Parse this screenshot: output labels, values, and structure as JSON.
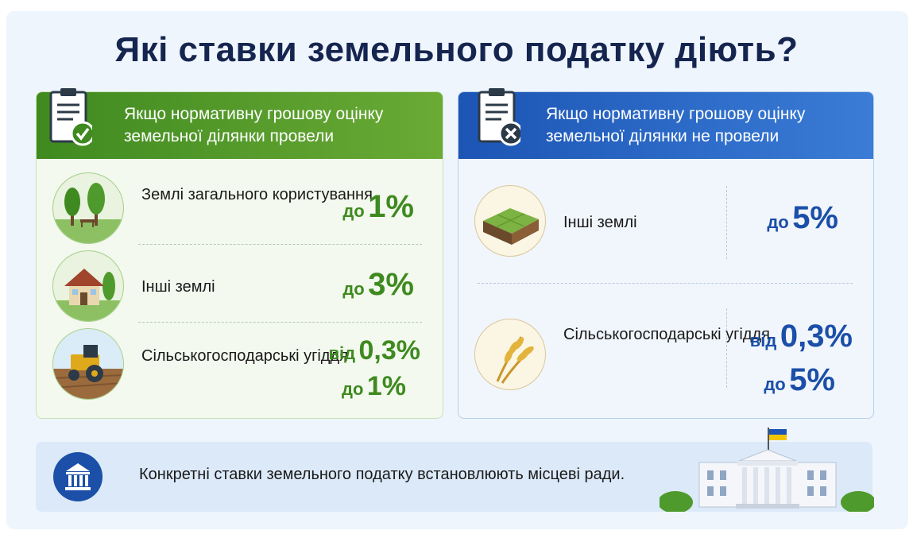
{
  "title": "Які ставки земельного податку діють?",
  "left_card": {
    "header": "Якщо нормативну грошову оцінку земельної ділянки провели",
    "header_icon": "clipboard-check-icon",
    "rows": [
      {
        "label": "Землі загального користування",
        "icon": "park-trees-bench-icon",
        "rate": [
          {
            "word": "до",
            "num": "1%"
          }
        ]
      },
      {
        "label": "Інші землі",
        "icon": "house-icon",
        "rate": [
          {
            "word": "до",
            "num": "3%"
          }
        ]
      },
      {
        "label": "Сільськогосподарські угіддя",
        "icon": "tractor-icon",
        "rate": [
          {
            "word": "від",
            "num": "0,3%"
          },
          {
            "word": "до",
            "num": "1%"
          }
        ]
      }
    ]
  },
  "right_card": {
    "header": "Якщо нормативну грошову оцінку земельної ділянки не провели",
    "header_icon": "clipboard-x-icon",
    "rows": [
      {
        "label": "Інші землі",
        "icon": "land-plot-icon",
        "rate": [
          {
            "word": "до",
            "num": "5%"
          }
        ]
      },
      {
        "label": "Сільськогосподарські угіддя",
        "icon": "wheat-icon",
        "rate": [
          {
            "word": "від",
            "num": "0,3%"
          },
          {
            "word": "до",
            "num": "5%"
          }
        ]
      }
    ]
  },
  "footer": {
    "text": "Конкретні ставки земельного податку встановлюють місцеві ради.",
    "icon": "government-building-icon",
    "illustration": "council-building-with-ukrainian-flag"
  },
  "colors": {
    "title": "#15254f",
    "green": "#3f8a20",
    "blue": "#1b4fa8",
    "background": "#eef5fc"
  }
}
